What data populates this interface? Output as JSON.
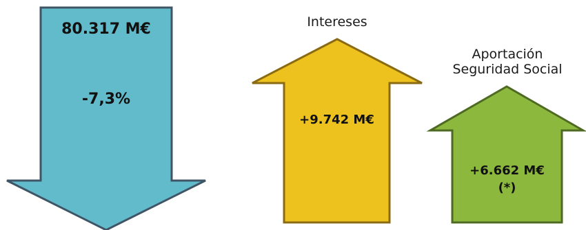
{
  "arrows": {
    "down": {
      "amount": "80.317 M€",
      "change": "-7,3%",
      "fill": "#62BBCB",
      "stroke": "#3F5566"
    },
    "intereses": {
      "title": "Intereses",
      "amount": "+9.742 M€",
      "fill": "#EEC21E",
      "stroke": "#8A6A12"
    },
    "seguridad_social": {
      "title_line1": "Aportación",
      "title_line2": "Seguridad Social",
      "amount": "+6.662 M€",
      "note": "(*)",
      "fill": "#8DB83E",
      "stroke": "#4E6A22"
    }
  }
}
